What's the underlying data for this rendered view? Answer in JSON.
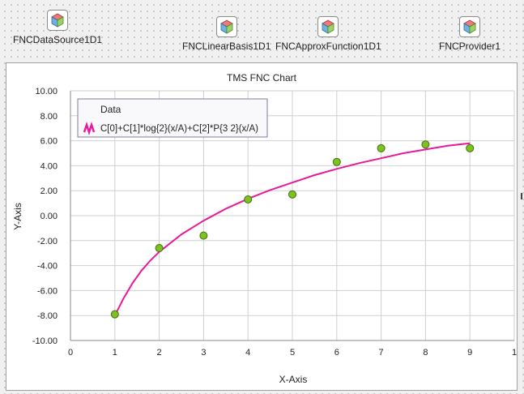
{
  "components": [
    {
      "name": "FNCDataSource1D1",
      "icon": "fnc-component-icon"
    },
    {
      "name": "FNCLinearBasis1D1",
      "icon": "fnc-component-icon"
    },
    {
      "name": "FNCApproxFunction1D1",
      "icon": "fnc-component-icon"
    },
    {
      "name": "FNCProvider1",
      "icon": "fnc-component-icon"
    }
  ],
  "colors": {
    "curve": "#e8199a",
    "point_fill": "#7ec21f",
    "point_stroke": "#3f6e10",
    "grid": "#cfcfcf",
    "canvas_dots": "#a9a9a9"
  },
  "chart_data": {
    "type": "scatter",
    "title": "TMS FNC Chart",
    "xlabel": "X-Axis",
    "ylabel": "Y-Axis",
    "xlim": [
      0,
      10
    ],
    "ylim": [
      -10,
      10
    ],
    "x_ticks": [
      "0",
      "1",
      "2",
      "3",
      "4",
      "5",
      "6",
      "7",
      "8",
      "9",
      "1"
    ],
    "y_ticks": [
      "10.00",
      "8.00",
      "6.00",
      "4.00",
      "2.00",
      "0.00",
      "-2.00",
      "-4.00",
      "-6.00",
      "-8.00",
      "-10.00"
    ],
    "grid": true,
    "legend": {
      "title": "Data",
      "position": "top-left"
    },
    "series": [
      {
        "name": "C[0]+C[1]*log{2}(x/A)+C[2]*P{3 2}(x/A)",
        "kind": "line",
        "x": [
          1,
          1.2,
          1.4,
          1.6,
          1.8,
          2,
          2.5,
          3,
          3.5,
          4,
          4.5,
          5,
          5.5,
          6,
          6.5,
          7,
          7.5,
          8,
          8.5,
          9
        ],
        "y": [
          -8.0,
          -6.6,
          -5.4,
          -4.4,
          -3.6,
          -2.9,
          -1.5,
          -0.4,
          0.55,
          1.35,
          2.05,
          2.65,
          3.25,
          3.75,
          4.2,
          4.6,
          5.0,
          5.3,
          5.6,
          5.8
        ]
      },
      {
        "kind": "points",
        "x": [
          1,
          2,
          3,
          4,
          5,
          6,
          7,
          8,
          9
        ],
        "y": [
          -7.9,
          -2.6,
          -1.6,
          1.3,
          1.7,
          4.3,
          5.4,
          5.7,
          5.4
        ]
      }
    ]
  }
}
